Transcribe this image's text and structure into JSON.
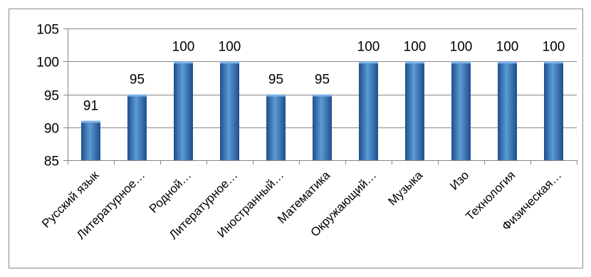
{
  "chart_data": {
    "type": "bar",
    "title": "",
    "xlabel": "",
    "ylabel": "",
    "categories": [
      "Русский язык",
      "Литературное…",
      "Родной…",
      "Литературное…",
      "Иностранный…",
      "Математика",
      "Окружающий…",
      "Музыка",
      "Изо",
      "Технология",
      "Физическая…"
    ],
    "values": [
      91,
      95,
      100,
      100,
      95,
      95,
      100,
      100,
      100,
      100,
      100
    ],
    "ylim": [
      85,
      105
    ],
    "yticks": [
      85,
      90,
      95,
      100,
      105
    ],
    "grid": true,
    "legend": "none",
    "colors": {
      "bar_light": "#5b9bd5",
      "bar_mid": "#2f6fbd",
      "bar_dark": "#1f4e8c",
      "grid": "#868686"
    }
  }
}
